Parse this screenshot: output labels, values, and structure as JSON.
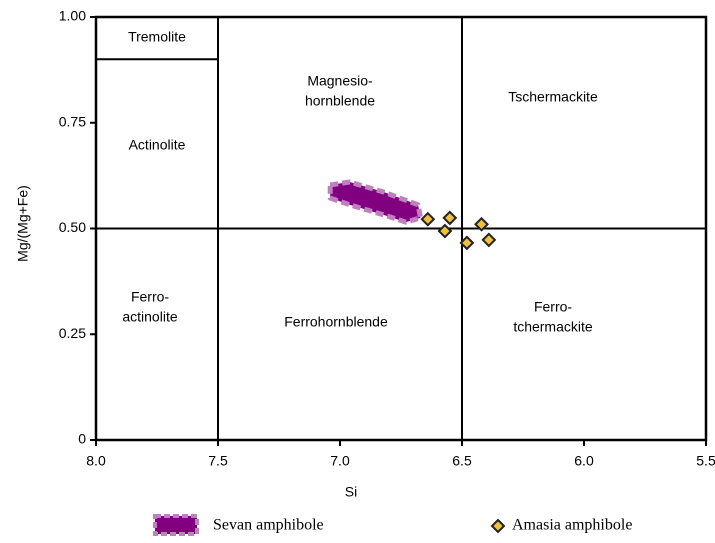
{
  "chart_data": {
    "type": "scatter",
    "x_label": "Si",
    "y_label": "Mg/(Mg+Fe)",
    "xlim": [
      8.0,
      5.5
    ],
    "ylim": [
      0,
      1.0
    ],
    "xticks": [
      {
        "value": 8,
        "label": "8.0"
      },
      {
        "value": 7.5,
        "label": "7.5"
      },
      {
        "value": 7,
        "label": "7.0"
      },
      {
        "value": 6.5,
        "label": "6.5"
      },
      {
        "value": 6,
        "label": "6.0"
      },
      5.5
    ],
    "yticks": [
      0,
      0.25,
      {
        "value": 0.5,
        "label": "0.50"
      },
      0.75,
      {
        "value": 1,
        "label": "1.00"
      }
    ],
    "boundaries": [
      {
        "x": [
          7.5,
          7.5
        ],
        "y": [
          0,
          1.0
        ]
      },
      {
        "x": [
          6.5,
          6.5
        ],
        "y": [
          0,
          1.0
        ]
      },
      {
        "x": [
          8.0,
          5.5
        ],
        "y": [
          0.5,
          0.5
        ]
      },
      {
        "x": [
          8.0,
          7.5
        ],
        "y": [
          0.9,
          0.9
        ]
      }
    ],
    "annotations": [
      [
        "Tremolite"
      ],
      [
        "Actinolite"
      ],
      [
        "Magnesio-",
        "hornblende"
      ],
      [
        "Tschermackite"
      ],
      [
        "Ferro-",
        "actinolite"
      ],
      [
        "Ferrohornblende"
      ],
      [
        "Ferro-",
        "tchermackite"
      ]
    ],
    "series": [
      {
        "name": "Sevan amphibole",
        "color": "#800080",
        "shape": "region",
        "x": [
          7.04,
          6.96,
          6.82,
          6.68,
          6.67,
          6.73,
          6.82,
          6.96,
          7.04
        ],
        "values": [
          0.603,
          0.61,
          0.586,
          0.556,
          0.525,
          0.515,
          0.532,
          0.556,
          0.572
        ]
      },
      {
        "name": "Amasia amphibole",
        "color": "#f0c040",
        "shape": "diamond",
        "x": [
          6.64,
          6.55,
          6.57,
          6.42,
          6.48,
          6.39
        ],
        "values": [
          0.522,
          0.525,
          0.494,
          0.51,
          0.466,
          0.473
        ]
      }
    ]
  }
}
